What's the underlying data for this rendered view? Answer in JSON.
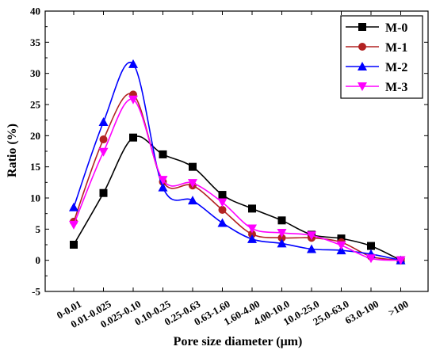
{
  "chart_data": {
    "type": "line",
    "xlabel": "Pore size diameter (μm)",
    "ylabel": "Ratio (%)",
    "ylim": [
      -5,
      40
    ],
    "yticks": [
      -5,
      0,
      5,
      10,
      15,
      20,
      25,
      30,
      35,
      40
    ],
    "categories": [
      "0-0.01",
      "0.01-0.025",
      "0.025-0.10",
      "0.10-0.25",
      "0.25-0.63",
      "0.63-1.60",
      "1.60-4.00",
      "4.00-10.0",
      "10.0-25.0",
      "25.0-63.0",
      "63.0-100",
      ">100"
    ],
    "legend_position": "top-right",
    "grid": false,
    "series": [
      {
        "name": "M-0",
        "color": "#000000",
        "marker": "square",
        "values": [
          2.5,
          10.8,
          19.7,
          17.0,
          15.0,
          10.5,
          8.3,
          6.4,
          4.1,
          3.5,
          2.3,
          0.0
        ]
      },
      {
        "name": "M-1",
        "color": "#b22222",
        "marker": "circle",
        "values": [
          6.2,
          19.4,
          26.6,
          12.6,
          12.0,
          8.1,
          4.2,
          3.6,
          3.6,
          2.9,
          0.6,
          0.0
        ]
      },
      {
        "name": "M-2",
        "color": "#0000ff",
        "marker": "triangle-up",
        "values": [
          8.5,
          22.2,
          31.5,
          11.7,
          9.6,
          6.0,
          3.4,
          2.7,
          1.8,
          1.6,
          1.0,
          0.0
        ]
      },
      {
        "name": "M-3",
        "color": "#ff00ff",
        "marker": "triangle-down",
        "values": [
          5.7,
          17.4,
          25.8,
          12.9,
          12.4,
          9.3,
          5.1,
          4.4,
          4.0,
          2.4,
          0.3,
          0.0
        ]
      }
    ]
  }
}
